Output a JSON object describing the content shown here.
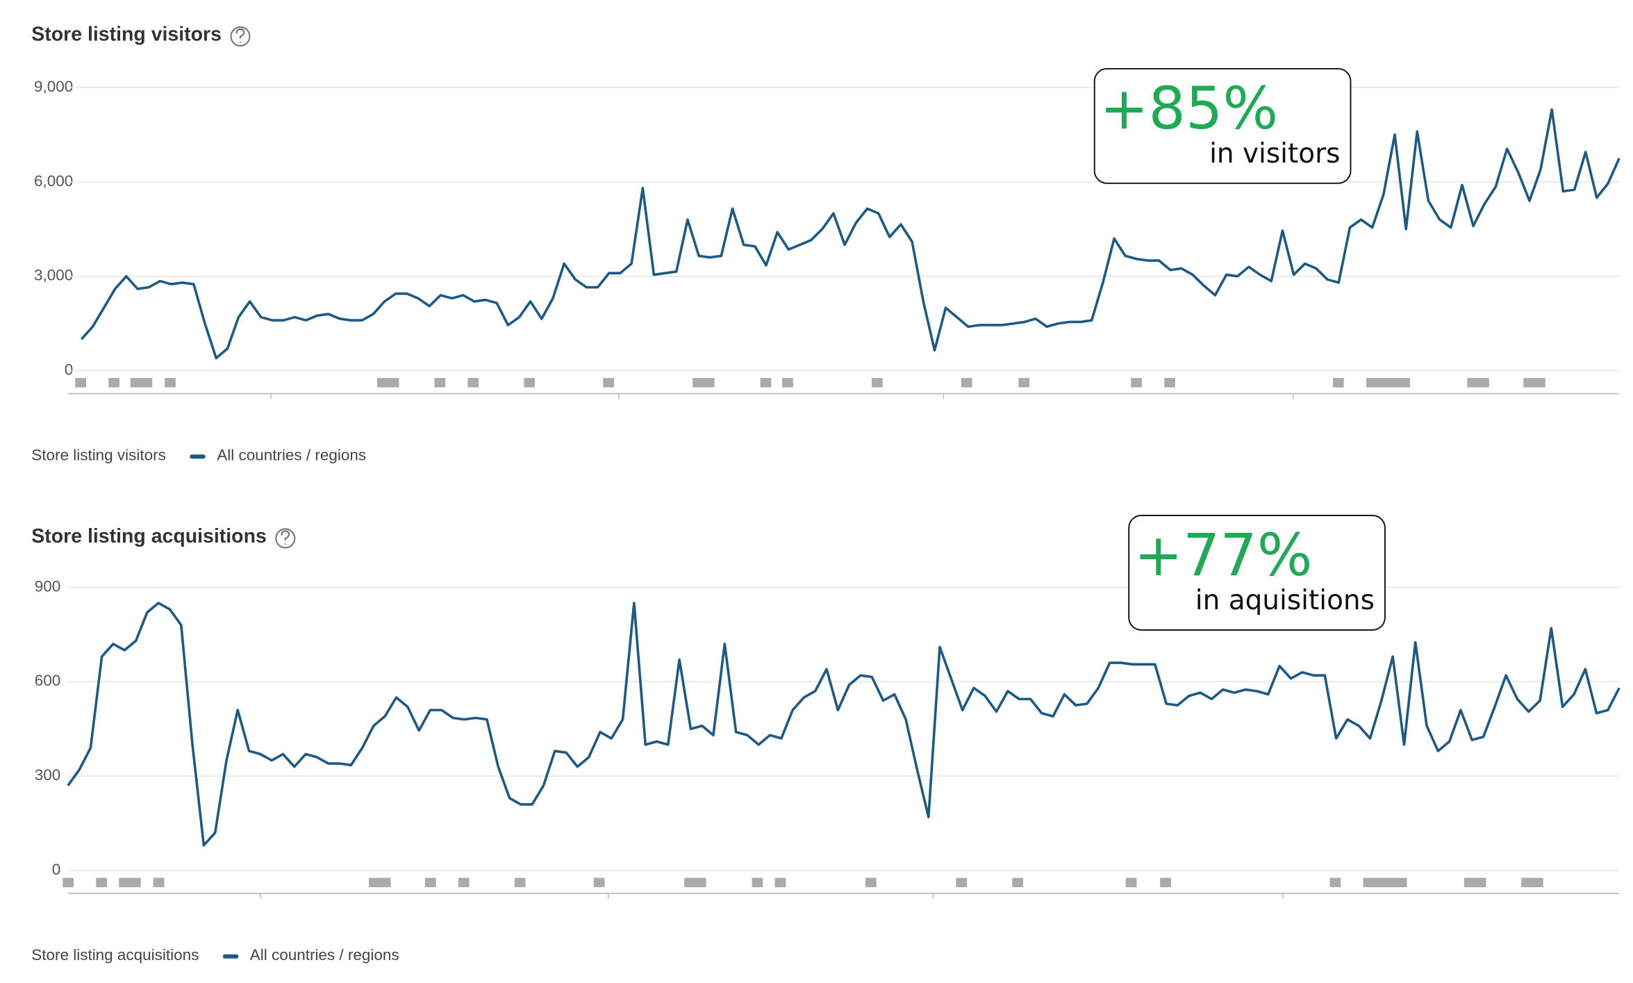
{
  "chart_data": [
    {
      "type": "line",
      "title": "Store listing visitors",
      "legend_title": "Store listing visitors",
      "ylim": [
        0,
        9000
      ],
      "yticks": [
        0,
        {
          "value": 3000,
          "label": "3,000"
        },
        {
          "value": 6000,
          "label": "6,000"
        },
        {
          "value": 9000,
          "label": "9,000"
        }
      ],
      "grid": true,
      "annotation": {
        "headline": "+85%",
        "text": "in visitors"
      },
      "series": [
        {
          "name": "All countries / regions",
          "color": "#1b5a87",
          "values": [
            1000,
            1400,
            2000,
            2600,
            3000,
            2600,
            2650,
            2850,
            2750,
            2800,
            2750,
            1500,
            400,
            700,
            1700,
            2200,
            1700,
            1600,
            1600,
            1700,
            1600,
            1750,
            1800,
            1650,
            1600,
            1600,
            1800,
            2200,
            2450,
            2450,
            2300,
            2050,
            2400,
            2300,
            2400,
            2200,
            2250,
            2150,
            1450,
            1700,
            2200,
            1650,
            2300,
            3400,
            2900,
            2650,
            2650,
            3100,
            3100,
            3400,
            5800,
            3050,
            3100,
            3150,
            4800,
            3650,
            3600,
            3650,
            5150,
            4000,
            3950,
            3350,
            4400,
            3850,
            4000,
            4150,
            4500,
            5000,
            4000,
            4700,
            5150,
            5000,
            4250,
            4650,
            4100,
            2200,
            650,
            2000,
            1700,
            1400,
            1450,
            1450,
            1450,
            1500,
            1550,
            1650,
            1400,
            1500,
            1550,
            1550,
            1600,
            2800,
            4200,
            3650,
            3550,
            3500,
            3500,
            3200,
            3250,
            3050,
            2700,
            2400,
            3050,
            3000,
            3300,
            3050,
            2850,
            4450,
            3050,
            3400,
            3250,
            2900,
            2800,
            4550,
            4800,
            4550,
            5600,
            7500,
            4500,
            7600,
            5400,
            4800,
            4550,
            5900,
            4600,
            5300,
            5850,
            7050,
            6300,
            5400,
            6400,
            8300,
            5700,
            5750,
            6950,
            5500,
            5950,
            6750
          ]
        }
      ]
    },
    {
      "type": "line",
      "title": "Store listing acquisitions",
      "legend_title": "Store listing acquisitions",
      "ylim": [
        0,
        900
      ],
      "yticks": [
        0,
        300,
        600,
        900
      ],
      "grid": true,
      "annotation": {
        "headline": "+77%",
        "text": "in aquisitions"
      },
      "series": [
        {
          "name": "All countries / regions",
          "color": "#1b5a87",
          "values": [
            270,
            320,
            390,
            680,
            720,
            700,
            730,
            820,
            850,
            830,
            780,
            400,
            80,
            120,
            350,
            510,
            380,
            370,
            350,
            370,
            330,
            370,
            360,
            340,
            340,
            335,
            390,
            460,
            490,
            550,
            520,
            445,
            510,
            510,
            485,
            480,
            485,
            480,
            330,
            230,
            210,
            210,
            270,
            380,
            375,
            330,
            360,
            440,
            420,
            480,
            850,
            400,
            410,
            400,
            670,
            450,
            460,
            430,
            720,
            440,
            430,
            400,
            430,
            420,
            510,
            550,
            570,
            640,
            510,
            590,
            620,
            615,
            540,
            560,
            480,
            320,
            170,
            710,
            610,
            510,
            580,
            555,
            505,
            570,
            545,
            545,
            500,
            490,
            560,
            525,
            530,
            580,
            660,
            660,
            655,
            655,
            655,
            530,
            525,
            555,
            565,
            545,
            575,
            565,
            575,
            570,
            560,
            650,
            610,
            630,
            620,
            620,
            420,
            480,
            460,
            420,
            540,
            680,
            400,
            725,
            460,
            380,
            410,
            510,
            415,
            425,
            520,
            620,
            545,
            505,
            540,
            770,
            520,
            560,
            640,
            500,
            510,
            580
          ]
        }
      ]
    }
  ]
}
